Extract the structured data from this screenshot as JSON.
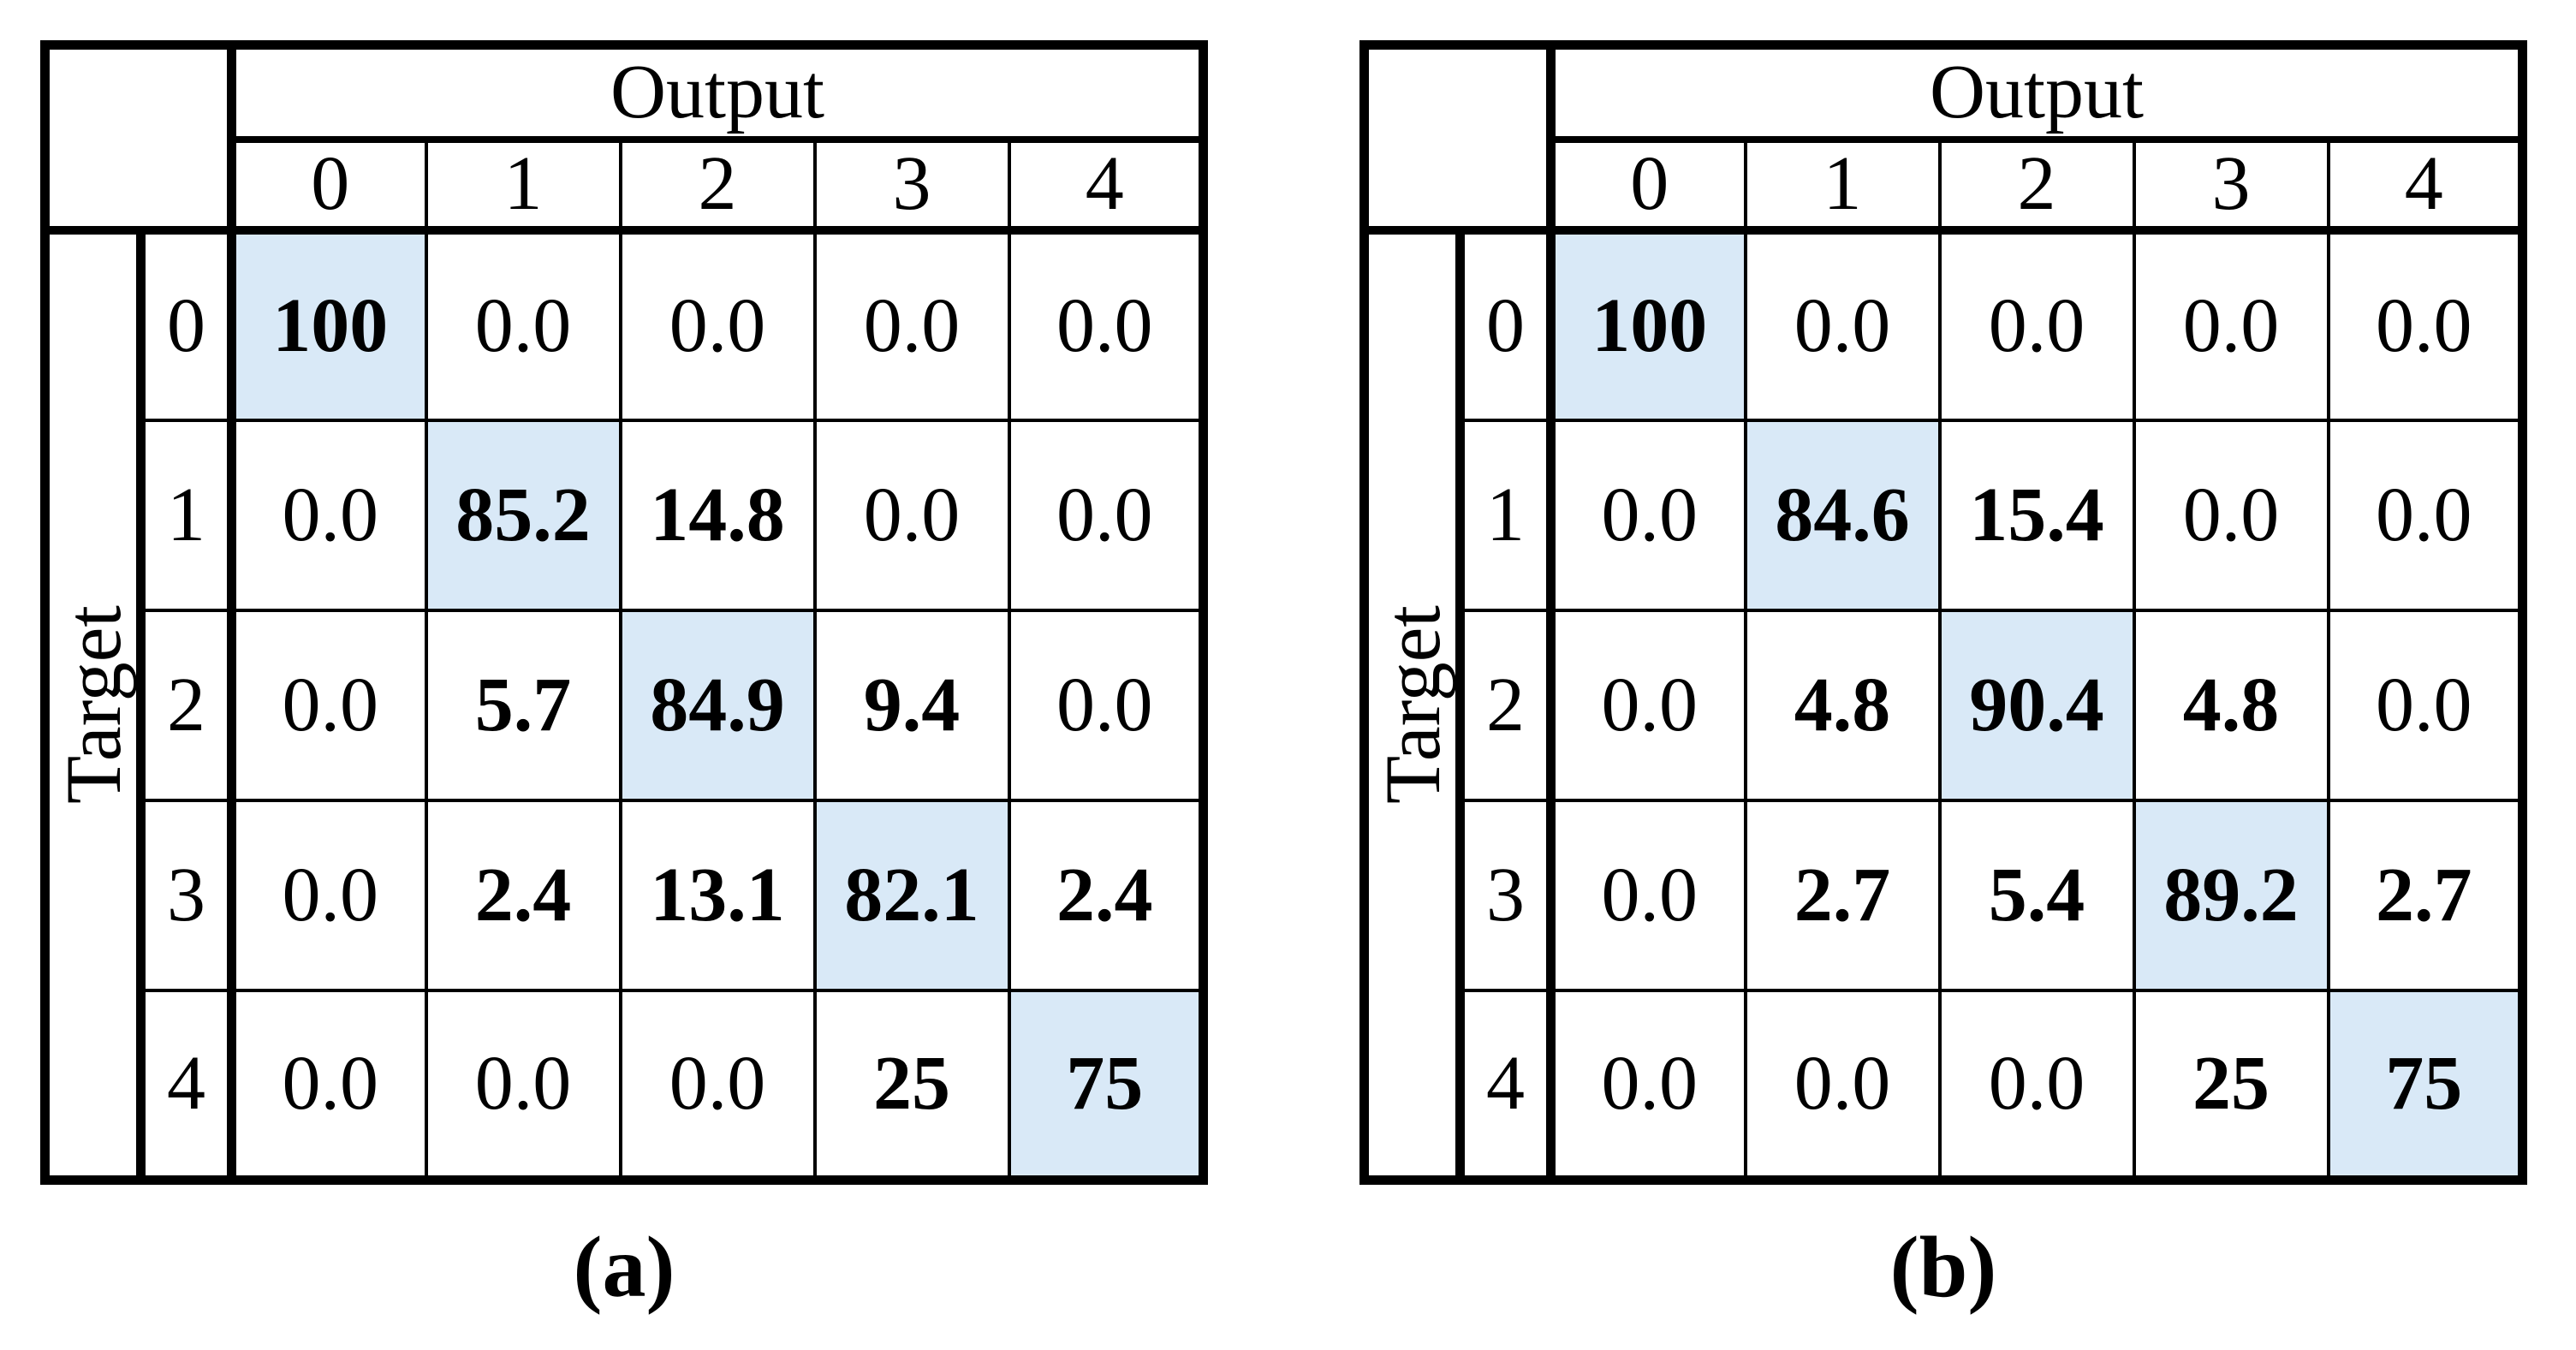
{
  "figure": {
    "type": "confusion-matrices",
    "background_color": "#ffffff",
    "line_color": "#000000",
    "highlight_color": "#d9e9f7",
    "tables": [
      {
        "caption": "(a)",
        "output_header": "Output",
        "target_header": "Target",
        "col_labels": [
          "0",
          "1",
          "2",
          "3",
          "4"
        ],
        "row_labels": [
          "0",
          "1",
          "2",
          "3",
          "4"
        ],
        "rows": [
          [
            "100",
            "0.0",
            "0.0",
            "0.0",
            "0.0"
          ],
          [
            "0.0",
            "85.2",
            "14.8",
            "0.0",
            "0.0"
          ],
          [
            "0.0",
            "5.7",
            "84.9",
            "9.4",
            "0.0"
          ],
          [
            "0.0",
            "2.4",
            "13.1",
            "82.1",
            "2.4"
          ],
          [
            "0.0",
            "0.0",
            "0.0",
            "25",
            "75"
          ]
        ]
      },
      {
        "caption": "(b)",
        "output_header": "Output",
        "target_header": "Target",
        "col_labels": [
          "0",
          "1",
          "2",
          "3",
          "4"
        ],
        "row_labels": [
          "0",
          "1",
          "2",
          "3",
          "4"
        ],
        "rows": [
          [
            "100",
            "0.0",
            "0.0",
            "0.0",
            "0.0"
          ],
          [
            "0.0",
            "84.6",
            "15.4",
            "0.0",
            "0.0"
          ],
          [
            "0.0",
            "4.8",
            "90.4",
            "4.8",
            "0.0"
          ],
          [
            "0.0",
            "2.7",
            "5.4",
            "89.2",
            "2.7"
          ],
          [
            "0.0",
            "0.0",
            "0.0",
            "25",
            "75"
          ]
        ]
      }
    ]
  },
  "chart_data": [
    {
      "type": "heatmap",
      "title": "(a)",
      "xlabel": "Output",
      "ylabel": "Target",
      "x_tick_labels": [
        "0",
        "1",
        "2",
        "3",
        "4"
      ],
      "y_tick_labels": [
        "0",
        "1",
        "2",
        "3",
        "4"
      ],
      "values_percent": [
        [
          100,
          0.0,
          0.0,
          0.0,
          0.0
        ],
        [
          0.0,
          85.2,
          14.8,
          0.0,
          0.0
        ],
        [
          0.0,
          5.7,
          84.9,
          9.4,
          0.0
        ],
        [
          0.0,
          2.4,
          13.1,
          82.1,
          2.4
        ],
        [
          0.0,
          0.0,
          0.0,
          25,
          75
        ]
      ],
      "highlight": "diagonal",
      "highlight_color": "#d9e9f7",
      "legend_position": "none",
      "grid": true
    },
    {
      "type": "heatmap",
      "title": "(b)",
      "xlabel": "Output",
      "ylabel": "Target",
      "x_tick_labels": [
        "0",
        "1",
        "2",
        "3",
        "4"
      ],
      "y_tick_labels": [
        "0",
        "1",
        "2",
        "3",
        "4"
      ],
      "values_percent": [
        [
          100,
          0.0,
          0.0,
          0.0,
          0.0
        ],
        [
          0.0,
          84.6,
          15.4,
          0.0,
          0.0
        ],
        [
          0.0,
          4.8,
          90.4,
          4.8,
          0.0
        ],
        [
          0.0,
          2.7,
          5.4,
          89.2,
          2.7
        ],
        [
          0.0,
          0.0,
          0.0,
          25,
          75
        ]
      ],
      "highlight": "diagonal",
      "highlight_color": "#d9e9f7",
      "legend_position": "none",
      "grid": true
    }
  ]
}
